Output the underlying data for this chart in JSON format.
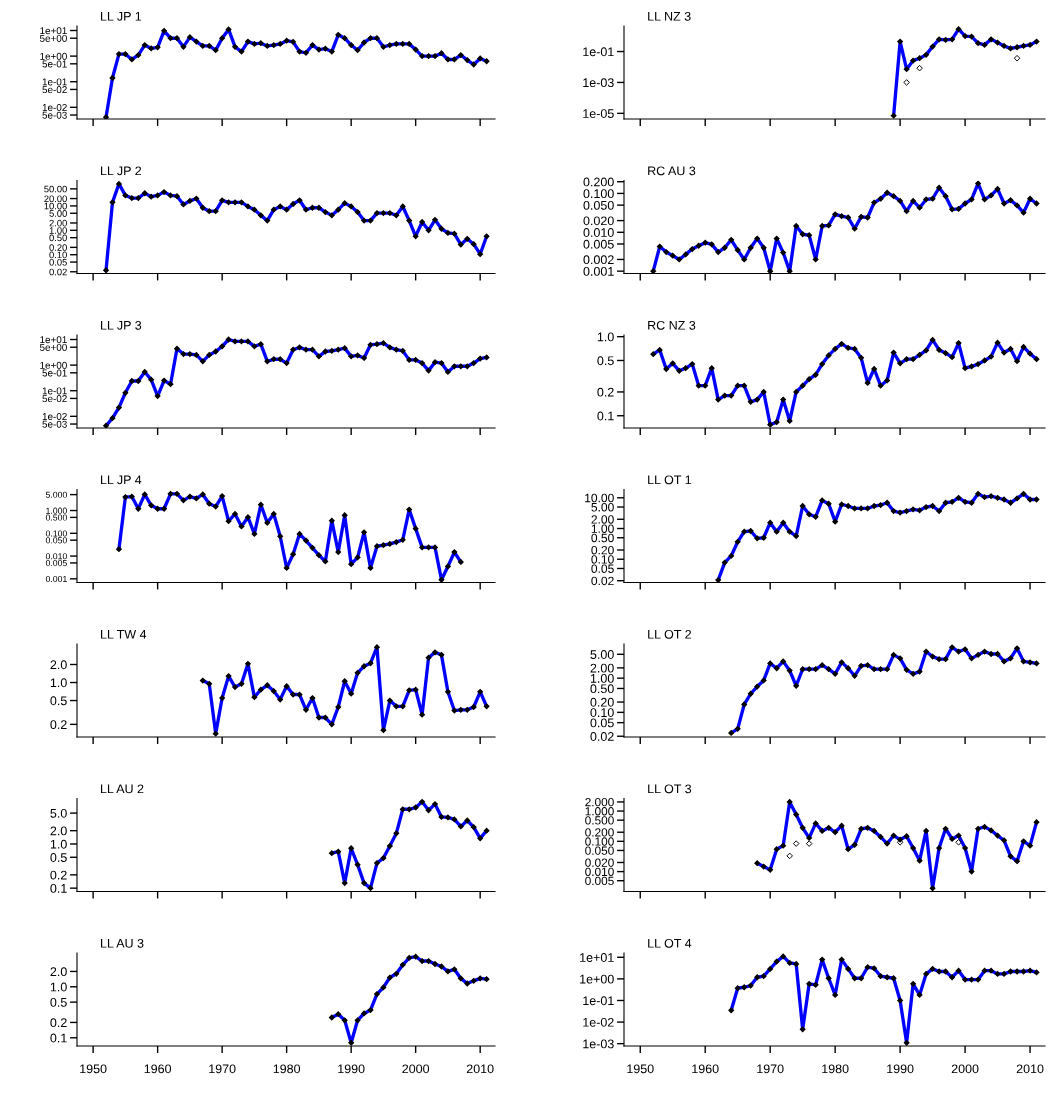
{
  "chart_data": [
    {
      "type": "line",
      "title": "LL JP 1",
      "log": "y",
      "marker": "diamond",
      "tick_labels": "y",
      "xlim": [
        1947.5,
        2012.3
      ],
      "xticks": [
        1950,
        1960,
        1970,
        1980,
        1990,
        2000,
        2010
      ],
      "ylim": [
        0.0035,
        15
      ],
      "yticks": [
        {
          "value": 10,
          "label": "1e+01"
        },
        {
          "value": 5,
          "label": "5e+00"
        },
        {
          "value": 1,
          "label": "1e+00"
        },
        {
          "value": 0.5,
          "label": "5e-01"
        },
        {
          "value": 0.1,
          "label": "1e-01"
        },
        {
          "value": 0.05,
          "label": "5e-02"
        },
        {
          "value": 0.01,
          "label": "1e-02"
        },
        {
          "value": 0.005,
          "label": "5e-03"
        }
      ],
      "x": [
        1952,
        1953,
        1954,
        1955,
        1956,
        1957,
        1958,
        1959,
        1960,
        1961,
        1962,
        1963,
        1964,
        1965,
        1966,
        1967,
        1968,
        1969,
        1970,
        1971,
        1972,
        1973,
        1974,
        1975,
        1976,
        1977,
        1978,
        1979,
        1980,
        1981,
        1982,
        1983,
        1984,
        1985,
        1986,
        1987,
        1988,
        1989,
        1990,
        1991,
        1992,
        1993,
        1994,
        1995,
        1996,
        1997,
        1998,
        1999,
        2000,
        2001,
        2002,
        2003,
        2004,
        2005,
        2006,
        2007,
        2008,
        2009,
        2010,
        2011
      ],
      "series": [
        {
          "type": "line",
          "color": "#0000ff",
          "values": [
            0.0041,
            0.14,
            1.2,
            1.2,
            0.74,
            1.1,
            2.7,
            2.0,
            2.2,
            9.7,
            5.0,
            5.0,
            2.3,
            5.5,
            3.7,
            2.5,
            2.5,
            1.7,
            5.0,
            11,
            2.3,
            1.5,
            3.7,
            3.0,
            3.2,
            2.5,
            2.7,
            3.0,
            4.0,
            3.6,
            1.5,
            1.35,
            2.7,
            1.8,
            1.95,
            1.5,
            6.8,
            5.0,
            2.7,
            1.7,
            3.4,
            5.0,
            5.0,
            2.3,
            2.7,
            3.0,
            3.0,
            3.0,
            1.8,
            1.0,
            1.0,
            1.0,
            1.3,
            0.74,
            0.74,
            1.1,
            0.7,
            0.47,
            0.81,
            0.63
          ]
        }
      ]
    },
    {
      "type": "line",
      "title": "LL NZ 3",
      "log": "y",
      "marker": "diamond",
      "tick_labels": "y",
      "xlim": [
        1947.5,
        2012.3
      ],
      "xticks": [
        1950,
        1960,
        1970,
        1980,
        1990,
        2000,
        2010
      ],
      "ylim": [
        4.3e-06,
        4.5
      ],
      "yticks": [
        {
          "value": 0.1,
          "label": "1e-01"
        },
        {
          "value": 0.001,
          "label": "1e-03"
        },
        {
          "value": 1e-05,
          "label": "1e-05"
        }
      ],
      "x": [
        1989,
        1990,
        1991,
        1992,
        1993,
        1994,
        1995,
        1996,
        1997,
        1998,
        1999,
        2000,
        2001,
        2002,
        2003,
        2004,
        2005,
        2006,
        2007,
        2008,
        2009,
        2010,
        2011
      ],
      "series": [
        {
          "type": "line",
          "color": "#0000ff",
          "values": [
            7.1e-06,
            0.44,
            0.0072,
            0.026,
            0.037,
            0.061,
            0.21,
            0.62,
            0.57,
            0.62,
            2.8,
            1.0,
            0.93,
            0.35,
            0.27,
            0.62,
            0.38,
            0.23,
            0.16,
            0.19,
            0.23,
            0.27,
            0.44
          ]
        },
        {
          "type": "scatter",
          "color": "#000000",
          "x": [
            1991,
            1993,
            2008
          ],
          "values": [
            0.001,
            0.0084,
            0.037
          ]
        }
      ]
    },
    {
      "type": "line",
      "title": "LL JP 2",
      "log": "y",
      "marker": "diamond",
      "tick_labels": "y",
      "xlim": [
        1947.5,
        2012.3
      ],
      "xticks": [
        1950,
        1960,
        1970,
        1980,
        1990,
        2000,
        2010
      ],
      "ylim": [
        0.017,
        110
      ],
      "yticks": [
        {
          "value": 50,
          "label": "50.00"
        },
        {
          "value": 20,
          "label": "20.00"
        },
        {
          "value": 10,
          "label": "10.00"
        },
        {
          "value": 5,
          "label": "5.00"
        },
        {
          "value": 2,
          "label": "2.00"
        },
        {
          "value": 1,
          "label": "1.00"
        },
        {
          "value": 0.5,
          "label": "0.50"
        },
        {
          "value": 0.2,
          "label": "0.20"
        },
        {
          "value": 0.1,
          "label": "0.10"
        },
        {
          "value": 0.05,
          "label": "0.05"
        },
        {
          "value": 0.02,
          "label": "0.02"
        }
      ],
      "x": [
        1952,
        1953,
        1954,
        1955,
        1956,
        1957,
        1958,
        1959,
        1960,
        1961,
        1962,
        1963,
        1964,
        1965,
        1966,
        1967,
        1968,
        1969,
        1970,
        1971,
        1972,
        1973,
        1974,
        1975,
        1976,
        1977,
        1978,
        1979,
        1980,
        1981,
        1982,
        1983,
        1984,
        1985,
        1986,
        1987,
        1988,
        1989,
        1990,
        1991,
        1992,
        1993,
        1994,
        1995,
        1996,
        1997,
        1998,
        1999,
        2000,
        2001,
        2002,
        2003,
        2004,
        2005,
        2006,
        2007,
        2008,
        2009,
        2010,
        2011
      ],
      "series": [
        {
          "type": "line",
          "color": "#0000ff",
          "values": [
            0.023,
            14,
            80,
            27,
            21,
            21,
            33,
            24,
            27,
            37,
            27,
            25,
            11.5,
            16,
            20,
            8.4,
            6.1,
            6.1,
            17,
            14,
            14,
            14,
            9.5,
            7.0,
            4.1,
            2.5,
            7.0,
            9.5,
            7.0,
            12,
            17,
            7.0,
            8.4,
            8.4,
            5.6,
            4.1,
            7.0,
            13,
            9.5,
            5.6,
            2.5,
            2.5,
            5.1,
            5.1,
            5.1,
            4.1,
            9.5,
            2.5,
            0.57,
            2.2,
            1.0,
            2.7,
            1.16,
            0.78,
            0.73,
            0.26,
            0.45,
            0.27,
            0.105,
            0.57
          ]
        }
      ]
    },
    {
      "type": "line",
      "title": "RC AU 3",
      "log": "y",
      "marker": "diamond",
      "tick_labels": "y",
      "xlim": [
        1947.5,
        2012.3
      ],
      "xticks": [
        1950,
        1960,
        1970,
        1980,
        1990,
        2000,
        2010
      ],
      "ylim": [
        0.00087,
        0.215
      ],
      "yticks": [
        {
          "value": 0.2,
          "label": "0.200"
        },
        {
          "value": 0.1,
          "label": "0.100"
        },
        {
          "value": 0.05,
          "label": "0.050"
        },
        {
          "value": 0.02,
          "label": "0.020"
        },
        {
          "value": 0.01,
          "label": "0.010"
        },
        {
          "value": 0.005,
          "label": "0.005"
        },
        {
          "value": 0.002,
          "label": "0.002"
        },
        {
          "value": 0.001,
          "label": "0.001"
        }
      ],
      "x": [
        1952,
        1953,
        1954,
        1955,
        1956,
        1957,
        1958,
        1959,
        1960,
        1961,
        1962,
        1963,
        1964,
        1965,
        1966,
        1967,
        1968,
        1969,
        1970,
        1971,
        1972,
        1973,
        1974,
        1975,
        1976,
        1977,
        1978,
        1979,
        1980,
        1981,
        1982,
        1983,
        1984,
        1985,
        1986,
        1987,
        1988,
        1989,
        1990,
        1991,
        1992,
        1993,
        1994,
        1995,
        1996,
        1997,
        1998,
        1999,
        2000,
        2001,
        2002,
        2003,
        2004,
        2005,
        2006,
        2007,
        2008,
        2009,
        2010,
        2011
      ],
      "series": [
        {
          "type": "line",
          "color": "#0000ff",
          "values": [
            0.001,
            0.0043,
            0.0031,
            0.0025,
            0.002,
            0.0027,
            0.0037,
            0.0045,
            0.0054,
            0.0049,
            0.0031,
            0.004,
            0.0064,
            0.0035,
            0.002,
            0.004,
            0.0069,
            0.004,
            0.001,
            0.0069,
            0.003,
            0.001,
            0.0145,
            0.0089,
            0.0084,
            0.002,
            0.0145,
            0.015,
            0.029,
            0.026,
            0.024,
            0.0124,
            0.025,
            0.024,
            0.058,
            0.073,
            0.104,
            0.085,
            0.064,
            0.035,
            0.064,
            0.043,
            0.07,
            0.073,
            0.14,
            0.085,
            0.039,
            0.04,
            0.055,
            0.07,
            0.18,
            0.07,
            0.089,
            0.13,
            0.055,
            0.067,
            0.049,
            0.032,
            0.073,
            0.055
          ]
        }
      ]
    },
    {
      "type": "line",
      "title": "LL JP 3",
      "log": "y",
      "marker": "diamond",
      "tick_labels": "y",
      "xlim": [
        1947.5,
        2012.3
      ],
      "xticks": [
        1950,
        1960,
        1970,
        1980,
        1990,
        2000,
        2010
      ],
      "ylim": [
        0.0035,
        15
      ],
      "yticks": [
        {
          "value": 10,
          "label": "1e+01"
        },
        {
          "value": 5,
          "label": "5e+00"
        },
        {
          "value": 1,
          "label": "1e+00"
        },
        {
          "value": 0.5,
          "label": "5e-01"
        },
        {
          "value": 0.1,
          "label": "1e-01"
        },
        {
          "value": 0.05,
          "label": "5e-02"
        },
        {
          "value": 0.01,
          "label": "1e-02"
        },
        {
          "value": 0.005,
          "label": "5e-03"
        }
      ],
      "x": [
        1952,
        1953,
        1954,
        1955,
        1956,
        1957,
        1958,
        1959,
        1960,
        1961,
        1962,
        1963,
        1964,
        1965,
        1966,
        1967,
        1968,
        1969,
        1970,
        1971,
        1972,
        1973,
        1974,
        1975,
        1976,
        1977,
        1978,
        1979,
        1980,
        1981,
        1982,
        1983,
        1984,
        1985,
        1986,
        1987,
        1988,
        1989,
        1990,
        1991,
        1992,
        1993,
        1994,
        1995,
        1996,
        1997,
        1998,
        1999,
        2000,
        2001,
        2002,
        2003,
        2004,
        2005,
        2006,
        2007,
        2008,
        2009,
        2010,
        2011
      ],
      "series": [
        {
          "type": "line",
          "color": "#0000ff",
          "values": [
            0.0043,
            0.0085,
            0.022,
            0.083,
            0.24,
            0.24,
            0.54,
            0.27,
            0.062,
            0.25,
            0.18,
            4.4,
            2.7,
            2.7,
            2.5,
            1.4,
            2.5,
            3.4,
            5.4,
            10,
            8.4,
            8.4,
            8.4,
            5.4,
            6.6,
            1.4,
            1.7,
            1.7,
            1.2,
            4.0,
            4.9,
            4.0,
            4.0,
            2.2,
            3.4,
            3.6,
            4.0,
            4.6,
            2.2,
            2.4,
            1.9,
            6.2,
            6.6,
            7.2,
            4.9,
            4.0,
            3.6,
            1.6,
            1.6,
            1.2,
            0.61,
            1.3,
            1.2,
            0.54,
            0.9,
            0.9,
            0.9,
            1.2,
            1.8,
            2.0
          ]
        }
      ]
    },
    {
      "type": "line",
      "title": "RC NZ 3",
      "log": "y",
      "marker": "diamond",
      "tick_labels": "y",
      "xlim": [
        1947.5,
        2012.3
      ],
      "xticks": [
        1950,
        1960,
        1970,
        1980,
        1990,
        2000,
        2010
      ],
      "ylim": [
        0.07,
        1.05
      ],
      "yticks": [
        {
          "value": 1,
          "label": "1.0"
        },
        {
          "value": 0.5,
          "label": "0.5"
        },
        {
          "value": 0.2,
          "label": "0.2"
        },
        {
          "value": 0.1,
          "label": "0.1"
        }
      ],
      "x": [
        1952,
        1953,
        1954,
        1955,
        1956,
        1957,
        1958,
        1959,
        1960,
        1961,
        1962,
        1963,
        1964,
        1965,
        1966,
        1967,
        1968,
        1969,
        1970,
        1971,
        1972,
        1973,
        1974,
        1975,
        1976,
        1977,
        1978,
        1979,
        1980,
        1981,
        1982,
        1983,
        1984,
        1985,
        1986,
        1987,
        1988,
        1989,
        1990,
        1991,
        1992,
        1993,
        1994,
        1995,
        1996,
        1997,
        1998,
        1999,
        2000,
        2001,
        2002,
        2003,
        2004,
        2005,
        2006,
        2007,
        2008,
        2009,
        2010,
        2011
      ],
      "series": [
        {
          "type": "line",
          "color": "#0000ff",
          "values": [
            0.6,
            0.68,
            0.39,
            0.46,
            0.37,
            0.4,
            0.45,
            0.24,
            0.24,
            0.4,
            0.16,
            0.18,
            0.18,
            0.24,
            0.24,
            0.15,
            0.16,
            0.2,
            0.077,
            0.083,
            0.16,
            0.086,
            0.2,
            0.24,
            0.29,
            0.33,
            0.45,
            0.58,
            0.7,
            0.81,
            0.72,
            0.7,
            0.54,
            0.26,
            0.39,
            0.24,
            0.28,
            0.63,
            0.46,
            0.52,
            0.52,
            0.59,
            0.67,
            0.91,
            0.68,
            0.62,
            0.55,
            0.83,
            0.4,
            0.42,
            0.45,
            0.5,
            0.56,
            0.84,
            0.63,
            0.7,
            0.49,
            0.74,
            0.61,
            0.52
          ]
        }
      ]
    },
    {
      "type": "line",
      "title": "LL JP 4",
      "log": "y",
      "marker": "diamond",
      "tick_labels": "y",
      "xlim": [
        1947.5,
        2012.3
      ],
      "xticks": [
        1950,
        1960,
        1970,
        1980,
        1990,
        2000,
        2010
      ],
      "ylim": [
        0.00069,
        8.4
      ],
      "yticks": [
        {
          "value": 5,
          "label": "5.000"
        },
        {
          "value": 1,
          "label": "1.000"
        },
        {
          "value": 0.5,
          "label": "0.500"
        },
        {
          "value": 0.1,
          "label": "0.100"
        },
        {
          "value": 0.05,
          "label": "0.050"
        },
        {
          "value": 0.01,
          "label": "0.010"
        },
        {
          "value": 0.005,
          "label": "0.005"
        },
        {
          "value": 0.001,
          "label": "0.001"
        }
      ],
      "x": [
        1954,
        1955,
        1956,
        1957,
        1958,
        1959,
        1960,
        1961,
        1962,
        1963,
        1964,
        1965,
        1966,
        1967,
        1968,
        1969,
        1970,
        1971,
        1972,
        1973,
        1974,
        1975,
        1976,
        1977,
        1978,
        1979,
        1980,
        1981,
        1982,
        1983,
        1984,
        1985,
        1986,
        1987,
        1988,
        1989,
        1990,
        1991,
        1992,
        1993,
        1994,
        1995,
        1996,
        1997,
        1998,
        1999,
        2000,
        2001,
        2002,
        2003,
        2004,
        2005,
        2006,
        2007
      ],
      "series": [
        {
          "type": "line",
          "color": "#0000ff",
          "values": [
            0.02,
            3.9,
            4.1,
            1.2,
            5.1,
            1.7,
            1.2,
            1.2,
            5.4,
            5.4,
            2.8,
            4.1,
            3.4,
            5.1,
            2.0,
            1.5,
            4.3,
            0.34,
            0.71,
            0.2,
            0.51,
            0.094,
            1.8,
            0.29,
            0.71,
            0.074,
            0.003,
            0.012,
            0.094,
            0.048,
            0.023,
            0.011,
            0.0058,
            0.36,
            0.015,
            0.62,
            0.0044,
            0.0087,
            0.11,
            0.003,
            0.027,
            0.03,
            0.034,
            0.041,
            0.052,
            1.1,
            0.16,
            0.024,
            0.024,
            0.024,
            0.00091,
            0.0035,
            0.015,
            0.0055
          ]
        }
      ]
    },
    {
      "type": "line",
      "title": "LL OT 1",
      "log": "y",
      "marker": "diamond",
      "tick_labels": "y",
      "xlim": [
        1947.5,
        2012.3
      ],
      "xticks": [
        1950,
        1960,
        1970,
        1980,
        1990,
        2000,
        2010
      ],
      "ylim": [
        0.0175,
        18.6
      ],
      "yticks": [
        {
          "value": 10,
          "label": "10.00"
        },
        {
          "value": 5,
          "label": "5.00"
        },
        {
          "value": 2,
          "label": "2.00"
        },
        {
          "value": 1,
          "label": "1.00"
        },
        {
          "value": 0.5,
          "label": "0.50"
        },
        {
          "value": 0.2,
          "label": "0.20"
        },
        {
          "value": 0.1,
          "label": "0.10"
        },
        {
          "value": 0.05,
          "label": "0.05"
        },
        {
          "value": 0.02,
          "label": "0.02"
        }
      ],
      "x": [
        1962,
        1963,
        1964,
        1965,
        1966,
        1967,
        1968,
        1969,
        1970,
        1971,
        1972,
        1973,
        1974,
        1975,
        1976,
        1977,
        1978,
        1979,
        1980,
        1981,
        1982,
        1983,
        1984,
        1985,
        1986,
        1987,
        1988,
        1989,
        1990,
        1991,
        1992,
        1993,
        1994,
        1995,
        1996,
        1997,
        1998,
        1999,
        2000,
        2001,
        2002,
        2003,
        2004,
        2005,
        2006,
        2007,
        2008,
        2009,
        2010,
        2011
      ],
      "series": [
        {
          "type": "line",
          "color": "#0000ff",
          "values": [
            0.021,
            0.078,
            0.128,
            0.37,
            0.79,
            0.83,
            0.48,
            0.5,
            1.55,
            0.79,
            1.55,
            0.79,
            0.57,
            5.4,
            2.9,
            2.4,
            8.2,
            6.4,
            1.67,
            6.1,
            5.4,
            4.5,
            4.5,
            4.5,
            5.4,
            5.8,
            6.9,
            3.7,
            3.3,
            3.7,
            4.2,
            3.9,
            5.0,
            5.4,
            3.7,
            6.9,
            7.4,
            10,
            7.4,
            6.9,
            13.5,
            10.5,
            11.3,
            10,
            8.8,
            6.9,
            9.5,
            13.5,
            8.8,
            8.8
          ]
        }
      ]
    },
    {
      "type": "line",
      "title": "LL TW 4",
      "log": "y",
      "marker": "diamond",
      "tick_labels": "y",
      "xlim": [
        1947.5,
        2012.3
      ],
      "xticks": [
        1950,
        1960,
        1970,
        1980,
        1990,
        2000,
        2010
      ],
      "ylim": [
        0.123,
        4.4
      ],
      "yticks": [
        {
          "value": 2,
          "label": "2.0"
        },
        {
          "value": 1,
          "label": "1.0"
        },
        {
          "value": 0.5,
          "label": "0.5"
        },
        {
          "value": 0.2,
          "label": "0.2"
        }
      ],
      "x": [
        1967,
        1968,
        1969,
        1970,
        1971,
        1972,
        1973,
        1974,
        1975,
        1976,
        1977,
        1978,
        1979,
        1980,
        1981,
        1982,
        1983,
        1984,
        1985,
        1986,
        1987,
        1988,
        1989,
        1990,
        1991,
        1992,
        1993,
        1994,
        1995,
        1996,
        1997,
        1998,
        1999,
        2000,
        2001,
        2002,
        2003,
        2004,
        2005,
        2006,
        2007,
        2008,
        2009,
        2010,
        2011
      ],
      "series": [
        {
          "type": "line",
          "color": "#0000ff",
          "values": [
            1.08,
            0.95,
            0.14,
            0.55,
            1.28,
            0.84,
            0.95,
            2.05,
            0.57,
            0.76,
            0.9,
            0.72,
            0.52,
            0.87,
            0.63,
            0.63,
            0.35,
            0.55,
            0.26,
            0.26,
            0.2,
            0.39,
            1.05,
            0.65,
            1.45,
            1.87,
            2.1,
            3.9,
            0.16,
            0.5,
            0.4,
            0.4,
            0.74,
            0.76,
            0.29,
            2.6,
            3.2,
            2.9,
            0.7,
            0.34,
            0.35,
            0.35,
            0.39,
            0.7,
            0.4
          ]
        }
      ]
    },
    {
      "type": "line",
      "title": "LL OT 2",
      "log": "y",
      "marker": "diamond",
      "tick_labels": "y",
      "xlim": [
        1947.5,
        2012.3
      ],
      "xticks": [
        1950,
        1960,
        1970,
        1980,
        1990,
        2000,
        2010
      ],
      "ylim": [
        0.019,
        10
      ],
      "yticks": [
        {
          "value": 5,
          "label": "5.00"
        },
        {
          "value": 2,
          "label": "2.00"
        },
        {
          "value": 1,
          "label": "1.00"
        },
        {
          "value": 0.5,
          "label": "0.50"
        },
        {
          "value": 0.2,
          "label": "0.20"
        },
        {
          "value": 0.1,
          "label": "0.10"
        },
        {
          "value": 0.05,
          "label": "0.05"
        },
        {
          "value": 0.02,
          "label": "0.02"
        }
      ],
      "x": [
        1964,
        1965,
        1966,
        1967,
        1968,
        1969,
        1970,
        1971,
        1972,
        1973,
        1974,
        1975,
        1976,
        1977,
        1978,
        1979,
        1980,
        1981,
        1982,
        1983,
        1984,
        1985,
        1986,
        1987,
        1988,
        1989,
        1990,
        1991,
        1992,
        1993,
        1994,
        1995,
        1996,
        1997,
        1998,
        1999,
        2000,
        2001,
        2002,
        2003,
        2004,
        2005,
        2006,
        2007,
        2008,
        2009,
        2010,
        2011
      ],
      "series": [
        {
          "type": "line",
          "color": "#0000ff",
          "values": [
            0.025,
            0.033,
            0.17,
            0.35,
            0.57,
            0.86,
            2.7,
            1.95,
            3.1,
            1.67,
            0.6,
            1.83,
            1.83,
            1.83,
            2.4,
            1.83,
            1.34,
            2.9,
            1.95,
            1.17,
            2.3,
            2.4,
            1.83,
            1.83,
            1.83,
            4.8,
            3.8,
            1.75,
            1.34,
            1.56,
            6.0,
            4.3,
            3.6,
            3.6,
            8.0,
            6.0,
            7.0,
            3.8,
            4.8,
            6.0,
            5.1,
            5.1,
            3.1,
            3.8,
            7.5,
            3.1,
            2.9,
            2.7
          ]
        }
      ]
    },
    {
      "type": "line",
      "title": "LL AU 2",
      "log": "y",
      "marker": "diamond",
      "tick_labels": "y",
      "xlim": [
        1947.5,
        2012.3
      ],
      "xticks": [
        1950,
        1960,
        1970,
        1980,
        1990,
        2000,
        2010
      ],
      "ylim": [
        0.084,
        10.7
      ],
      "yticks": [
        {
          "value": 5,
          "label": "5.0"
        },
        {
          "value": 2,
          "label": "2.0"
        },
        {
          "value": 1,
          "label": "1.0"
        },
        {
          "value": 0.5,
          "label": "0.5"
        },
        {
          "value": 0.2,
          "label": "0.2"
        },
        {
          "value": 0.1,
          "label": "0.1"
        }
      ],
      "x": [
        1987,
        1988,
        1989,
        1990,
        1991,
        1992,
        1993,
        1994,
        1995,
        1996,
        1997,
        1998,
        1999,
        2000,
        2001,
        2002,
        2003,
        2004,
        2005,
        2006,
        2007,
        2008,
        2009,
        2010,
        2011
      ],
      "series": [
        {
          "type": "line",
          "color": "#0000ff",
          "values": [
            0.62,
            0.67,
            0.13,
            0.8,
            0.34,
            0.13,
            0.1,
            0.37,
            0.48,
            0.9,
            1.74,
            6.1,
            6.1,
            6.7,
            9.0,
            5.8,
            8.0,
            4.1,
            4.0,
            3.6,
            2.5,
            3.4,
            2.4,
            1.34,
            2.0
          ]
        }
      ]
    },
    {
      "type": "line",
      "title": "LL OT 3",
      "log": "y",
      "marker": "diamond",
      "tick_labels": "y",
      "xlim": [
        1947.5,
        2012.3
      ],
      "xticks": [
        1950,
        1960,
        1970,
        1980,
        1990,
        2000,
        2010
      ],
      "ylim": [
        0.0022,
        2.6
      ],
      "yticks": [
        {
          "value": 2,
          "label": "2.000"
        },
        {
          "value": 1,
          "label": "1.000"
        },
        {
          "value": 0.5,
          "label": "0.500"
        },
        {
          "value": 0.2,
          "label": "0.200"
        },
        {
          "value": 0.1,
          "label": "0.100"
        },
        {
          "value": 0.05,
          "label": "0.050"
        },
        {
          "value": 0.02,
          "label": "0.020"
        },
        {
          "value": 0.01,
          "label": "0.010"
        },
        {
          "value": 0.005,
          "label": "0.005"
        }
      ],
      "x": [
        1968,
        1969,
        1970,
        1971,
        1972,
        1973,
        1974,
        1975,
        1976,
        1977,
        1978,
        1979,
        1980,
        1981,
        1982,
        1983,
        1984,
        1985,
        1986,
        1987,
        1988,
        1989,
        1990,
        1991,
        1992,
        1993,
        1994,
        1995,
        1996,
        1997,
        1998,
        1999,
        2000,
        2001,
        2002,
        2003,
        2004,
        2005,
        2006,
        2007,
        2008,
        2009,
        2010,
        2011
      ],
      "series": [
        {
          "type": "line",
          "color": "#0000ff",
          "values": [
            0.019,
            0.0147,
            0.0114,
            0.055,
            0.072,
            2.0,
            0.77,
            0.28,
            0.13,
            0.39,
            0.22,
            0.28,
            0.2,
            0.33,
            0.055,
            0.077,
            0.26,
            0.28,
            0.22,
            0.14,
            0.084,
            0.155,
            0.114,
            0.147,
            0.06,
            0.023,
            0.22,
            0.0028,
            0.06,
            0.26,
            0.12,
            0.155,
            0.06,
            0.01,
            0.26,
            0.3,
            0.23,
            0.155,
            0.108,
            0.032,
            0.022,
            0.1,
            0.072,
            0.43
          ]
        },
        {
          "type": "scatter",
          "color": "#000000",
          "x": [
            1973,
            1974,
            1976,
            1990,
            1999
          ],
          "values": [
            0.033,
            0.084,
            0.084,
            0.093,
            0.093
          ]
        }
      ]
    },
    {
      "type": "line",
      "title": "LL AU 3",
      "log": "y",
      "marker": "diamond",
      "xlim": [
        1947.5,
        2012.3
      ],
      "xticks": [
        1950,
        1960,
        1970,
        1980,
        1990,
        2000,
        2010
      ],
      "ylim": [
        0.069,
        4.6
      ],
      "yticks": [
        {
          "value": 2,
          "label": "2.0"
        },
        {
          "value": 1,
          "label": "1.0"
        },
        {
          "value": 0.5,
          "label": "0.5"
        },
        {
          "value": 0.2,
          "label": "0.2"
        },
        {
          "value": 0.1,
          "label": "0.1"
        }
      ],
      "x": [
        1987,
        1988,
        1989,
        1990,
        1991,
        1992,
        1993,
        1994,
        1995,
        1996,
        1997,
        1998,
        1999,
        2000,
        2001,
        2002,
        2003,
        2004,
        2005,
        2006,
        2007,
        2008,
        2009,
        2010,
        2011
      ],
      "series": [
        {
          "type": "line",
          "color": "#0000ff",
          "values": [
            0.25,
            0.29,
            0.22,
            0.08,
            0.22,
            0.3,
            0.35,
            0.72,
            0.97,
            1.52,
            1.8,
            2.7,
            3.7,
            3.9,
            3.2,
            3.2,
            2.8,
            2.5,
            2.0,
            2.2,
            1.46,
            1.16,
            1.31,
            1.46,
            1.41
          ]
        }
      ]
    },
    {
      "type": "line",
      "title": "LL OT 4",
      "log": "y",
      "marker": "diamond",
      "xlim": [
        1947.5,
        2012.3
      ],
      "xticks": [
        1950,
        1960,
        1970,
        1980,
        1990,
        2000,
        2010
      ],
      "ylim": [
        0.00078,
        15.8
      ],
      "yticks": [
        {
          "value": 10,
          "label": "1e+01"
        },
        {
          "value": 1,
          "label": "1e+00"
        },
        {
          "value": 0.1,
          "label": "1e-01"
        },
        {
          "value": 0.01,
          "label": "1e-02"
        },
        {
          "value": 0.001,
          "label": "1e-03"
        }
      ],
      "x": [
        1964,
        1965,
        1966,
        1967,
        1968,
        1969,
        1970,
        1971,
        1972,
        1973,
        1974,
        1975,
        1976,
        1977,
        1978,
        1979,
        1980,
        1981,
        1982,
        1983,
        1984,
        1985,
        1986,
        1987,
        1988,
        1989,
        1990,
        1991,
        1992,
        1993,
        1994,
        1995,
        1996,
        1997,
        1998,
        1999,
        2000,
        2001,
        2002,
        2003,
        2004,
        2005,
        2006,
        2007,
        2008,
        2009,
        2010,
        2011
      ],
      "series": [
        {
          "type": "line",
          "color": "#0000ff",
          "values": [
            0.035,
            0.37,
            0.41,
            0.49,
            1.19,
            1.33,
            2.9,
            6.3,
            11,
            5.5,
            4.9,
            0.0046,
            0.59,
            0.53,
            7.8,
            1.07,
            0.18,
            7.8,
            2.9,
            1.07,
            1.07,
            3.5,
            3.1,
            1.33,
            1.19,
            1.07,
            0.1,
            0.0011,
            0.59,
            0.18,
            1.7,
            2.9,
            2.2,
            2.2,
            1.19,
            2.4,
            0.93,
            0.93,
            0.93,
            2.4,
            2.4,
            1.7,
            1.7,
            2.2,
            2.2,
            2.2,
            2.4,
            2.0
          ]
        }
      ]
    }
  ]
}
